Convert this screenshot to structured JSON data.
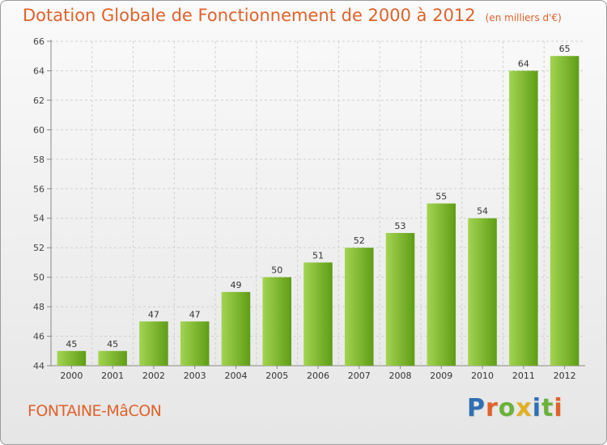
{
  "header": {
    "title": "Dotation Globale de Fonctionnement de 2000 à 2012",
    "subtitle": "(en milliers d'€)"
  },
  "footer": {
    "commune": "FONTAINE-MâCON",
    "logo_letters": [
      "P",
      "r",
      "o",
      "x",
      "i",
      "t",
      "i"
    ]
  },
  "colors": {
    "title": "#e0622a",
    "bar_light": "#a3d451",
    "bar_dark": "#5f9d16",
    "grid": "#cfcfcf"
  },
  "chart_data": {
    "type": "bar",
    "title": "Dotation Globale de Fonctionnement de 2000 à 2012",
    "subtitle": "(en milliers d'€)",
    "xlabel": "",
    "ylabel": "",
    "categories": [
      "2000",
      "2001",
      "2002",
      "2003",
      "2004",
      "2005",
      "2006",
      "2007",
      "2008",
      "2009",
      "2010",
      "2011",
      "2012"
    ],
    "values": [
      45,
      45,
      47,
      47,
      49,
      50,
      51,
      52,
      53,
      55,
      54,
      64,
      65
    ],
    "ylim": [
      44,
      66
    ],
    "yticks": [
      44,
      46,
      48,
      50,
      52,
      54,
      56,
      58,
      60,
      62,
      64,
      66
    ],
    "grid": true,
    "data_labels": true
  }
}
